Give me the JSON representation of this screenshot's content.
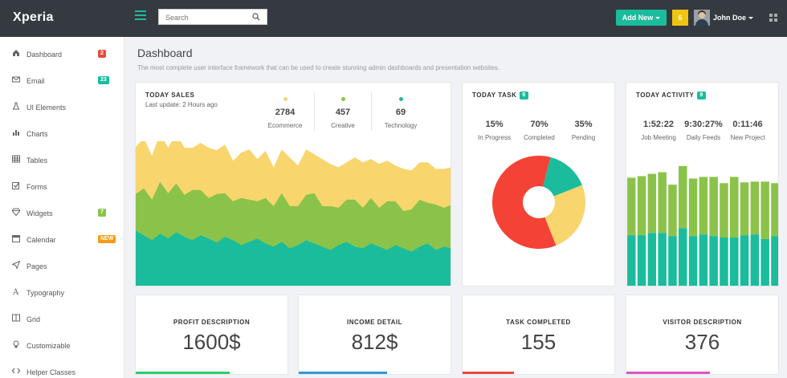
{
  "app": {
    "title": "Xperia"
  },
  "header": {
    "search_placeholder": "Search",
    "add_new_label": "Add New",
    "notification_count": "6",
    "user_name": "John Doe"
  },
  "sidebar": {
    "items": [
      {
        "label": "Dashboard",
        "icon": "home-icon",
        "badge": "2",
        "badge_color": "#e74c3c"
      },
      {
        "label": "Email",
        "icon": "envelope-icon",
        "badge": "23",
        "badge_color": "#1abc9c"
      },
      {
        "label": "UI Elements",
        "icon": "flask-icon"
      },
      {
        "label": "Charts",
        "icon": "bar-chart-icon"
      },
      {
        "label": "Tables",
        "icon": "table-icon"
      },
      {
        "label": "Forms",
        "icon": "checkbox-icon"
      },
      {
        "label": "Widgets",
        "icon": "diamond-icon",
        "badge": "7",
        "badge_color": "#8bc34a"
      },
      {
        "label": "Calendar",
        "icon": "calendar-icon",
        "badge": "NEW",
        "badge_color": "#f39c12"
      },
      {
        "label": "Pages",
        "icon": "paper-plane-icon"
      },
      {
        "label": "Typography",
        "icon": "font-icon"
      },
      {
        "label": "Grid",
        "icon": "columns-icon"
      },
      {
        "label": "Customizable",
        "icon": "bulb-icon"
      },
      {
        "label": "Helper Classes",
        "icon": "code-icon"
      }
    ]
  },
  "page": {
    "title": "Dashboard",
    "subtitle": "The most complete user interface framework that can be used to create stunning admin dashboards and presentation websites."
  },
  "sales": {
    "title": "TODAY SALES",
    "updated": "Last update: 2 Hours ago",
    "stats": [
      {
        "value": "2784",
        "label": "Ecommerce",
        "color": "#f9d56e"
      },
      {
        "value": "457",
        "label": "Creative",
        "color": "#8bc34a"
      },
      {
        "value": "69",
        "label": "Technology",
        "color": "#1abc9c"
      }
    ]
  },
  "task": {
    "title": "TODAY TASK",
    "badge": "6",
    "stats": [
      {
        "value": "15%",
        "label": "In Progress"
      },
      {
        "value": "70%",
        "label": "Completed"
      },
      {
        "value": "35%",
        "label": "Pending"
      }
    ]
  },
  "activity": {
    "title": "TODAY ACTIVITY",
    "badge": "9",
    "stats": [
      {
        "value": "1:52:22",
        "label": "Job Meeting"
      },
      {
        "value": "9:30:27%",
        "label": "Daily Feeds"
      },
      {
        "value": "0:11:46",
        "label": "New Project"
      }
    ]
  },
  "summary": [
    {
      "title": "PROFIT DESCRIPTION",
      "value": "1600$",
      "strip_color": "#2ecc71",
      "progress": 0.62
    },
    {
      "title": "INCOME DETAIL",
      "value": "812$",
      "strip_color": "#3498db",
      "progress": 0.58
    },
    {
      "title": "TASK COMPLETED",
      "value": "155",
      "strip_color": "#e74c3c",
      "progress": 0.34
    },
    {
      "title": "VISITOR DESCRIPTION",
      "value": "376",
      "strip_color": "#e056c1",
      "progress": 0.55
    }
  ],
  "chart_data": [
    {
      "type": "area",
      "series_colors": [
        "#1abc9c",
        "#8bc34a",
        "#f9d56e"
      ],
      "series": [
        {
          "values": [
            70,
            64,
            58,
            66,
            60,
            68,
            62,
            58,
            64,
            60,
            55,
            62,
            58,
            52,
            56,
            60,
            54,
            50,
            56,
            48,
            52,
            58,
            54,
            50,
            46,
            52,
            56,
            50,
            48,
            54,
            50,
            46,
            52,
            48,
            44,
            50,
            54,
            46,
            50,
            48
          ]
        },
        {
          "values": [
            45,
            58,
            50,
            64,
            56,
            60,
            52,
            62,
            56,
            50,
            60,
            54,
            48,
            58,
            52,
            46,
            56,
            50,
            60,
            52,
            48,
            56,
            62,
            50,
            54,
            46,
            52,
            58,
            50,
            56,
            48,
            60,
            54,
            46,
            52,
            58,
            50,
            56,
            48,
            54
          ]
        },
        {
          "values": [
            58,
            62,
            54,
            60,
            56,
            62,
            58,
            52,
            58,
            62,
            54,
            60,
            50,
            56,
            62,
            52,
            58,
            48,
            54,
            60,
            50,
            56,
            48,
            58,
            52,
            50,
            46,
            52,
            56,
            48,
            54,
            50,
            44,
            52,
            48,
            46,
            50,
            44,
            48,
            46
          ]
        }
      ]
    },
    {
      "type": "pie",
      "slices": [
        {
          "value": 15,
          "color": "#1abc9c"
        },
        {
          "value": 25,
          "color": "#f9d56e"
        },
        {
          "value": 60,
          "color": "#f44336"
        }
      ]
    },
    {
      "type": "bar",
      "series": [
        {
          "values": [
            67,
            67,
            70,
            70,
            66,
            76,
            66,
            68,
            66,
            64,
            64,
            67,
            68,
            62,
            66,
            62,
            64,
            60,
            66,
            60
          ]
        },
        {
          "values": [
            74,
            76,
            76,
            78,
            66,
            80,
            74,
            74,
            76,
            70,
            78,
            68,
            68,
            74,
            68,
            72,
            74,
            62,
            70,
            86
          ]
        }
      ]
    }
  ]
}
